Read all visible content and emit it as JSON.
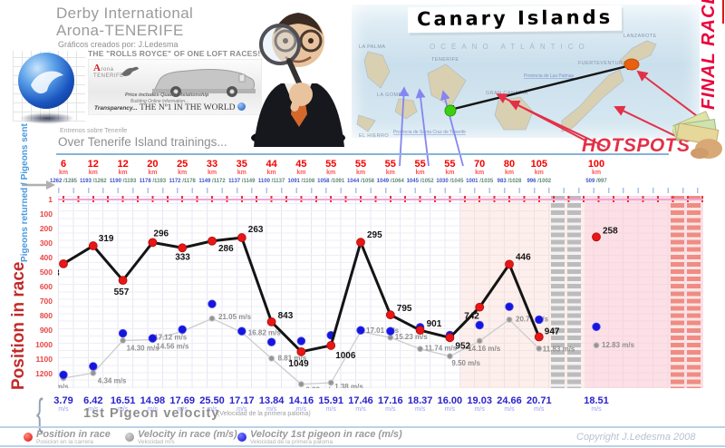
{
  "titles": {
    "line1": "Derby International",
    "line2": "Arona-TENERIFE",
    "credit": "Gráficos creados por: J.Ledesma"
  },
  "banner": {
    "title": "THE \"ROLLS ROYCE\" OF ONE LOFT RACES!",
    "logo_a": "A",
    "logo_rest": "rona",
    "logo_sub": "TENERIFE",
    "price": "Price includes-Quality Relationship",
    "building": "Building Online Information...",
    "transparency": "Transparency...",
    "no1": "THE Nº1 IN THE WORLD"
  },
  "map": {
    "title": "Canary Islands",
    "ocean": "OCÉANO ATLÁNTICO",
    "islands": [
      "La Palma",
      "Tenerife",
      "La Gomera",
      "El Hierro",
      "Gran Canaria",
      "Fuerteventura",
      "Lanzarote"
    ],
    "provinces": [
      "Provincia de Las Palmas",
      "Provincia de Santa Cruz de Tenerife"
    ],
    "hotspots": "HOTSPOTS",
    "final_race": "FINAL RACE"
  },
  "trainings": {
    "es": "Entrenos sobre Tenerife",
    "en": "Over Tenerife Island trainings..."
  },
  "axes": {
    "left_label": "Pigeons returned / Pigeons sent",
    "position_label": "Position in race",
    "km_unit": "km",
    "ms_unit": "m/s",
    "y_ticks": [
      "1",
      "100",
      "200",
      "300",
      "400",
      "500",
      "600",
      "700",
      "800",
      "900",
      "1000",
      "1100",
      "1200"
    ],
    "vel_brace": "{",
    "vel_label_en": "1st Pigeon velocity",
    "vel_label_es": "(Velocidad de la primera paloma)"
  },
  "chart_data": {
    "type": "line",
    "title": "Over Tenerife Island trainings",
    "columns_km": [
      6,
      12,
      12,
      20,
      25,
      33,
      35,
      44,
      45,
      55,
      55,
      55,
      55,
      55,
      70,
      80,
      105,
      100
    ],
    "returned_sent": [
      "1262 /1285",
      "1193 /1262",
      "1190 /1193",
      "1178 /1193",
      "1172 /1178",
      "1149 /1172",
      "1137 /1149",
      "1100 /1137",
      "1091 /1108",
      "1058 /1091",
      "1044 /1058",
      "1049 /1064",
      "1045 /1052",
      "1030 /1045",
      "1001 /1035",
      "983 /1028",
      "996 /1002",
      "509 /997"
    ],
    "series": [
      {
        "name": "Position in race",
        "color": "#e81818",
        "values": [
          443,
          319,
          557,
          296,
          333,
          286,
          263,
          843,
          1049,
          1006,
          295,
          795,
          901,
          952,
          742,
          446,
          947,
          258
        ]
      },
      {
        "name": "Velocity in race (m/s)",
        "color": "#9a9a9a",
        "values": [
          "2.79",
          "4.34",
          "14.30",
          "14.56",
          "17.12",
          "21.05",
          "16.82",
          "8.81",
          "0.93",
          "1.38",
          "17.01",
          "15.23",
          "11.74",
          "9.50",
          "14.16",
          "20.71",
          "11.83",
          "12.83"
        ]
      },
      {
        "name": "Velocity 1st pigeon in race (m/s)",
        "color": "#1616dd",
        "values": [
          "3.79",
          "6.42",
          "16.51",
          "14.98",
          "17.69",
          "25.50",
          "17.17",
          "13.84",
          "14.16",
          "15.91",
          "17.46",
          "17.16",
          "18.37",
          "16.00",
          "19.03",
          "24.66",
          "20.71",
          "18.51"
        ]
      }
    ],
    "ylim": [
      1,
      1200
    ],
    "y_inverted": true,
    "grid": true,
    "legend_position": "bottom"
  },
  "legend": {
    "items": [
      {
        "label": "Position in race",
        "sub": "Posicion en la carrera",
        "color": "#e81818"
      },
      {
        "label": "Velocity in race (m/s)",
        "sub": "Velocidad m/s",
        "color": "#9a9a9a"
      },
      {
        "label": "Velocity 1st pigeon in race (m/s)",
        "sub": "Velocidad de la primera paloma",
        "color": "#1616dd"
      }
    ]
  },
  "footer": {
    "copyright": "Copyright J.Ledesma 2008"
  },
  "colors": {
    "accent_red": "#f40000",
    "velocity_blue": "#2a22cc",
    "pink_zone": "#fad8d0",
    "salmon_stripe": "#ef8c84",
    "gray_stripe": "#bcbcbc"
  }
}
